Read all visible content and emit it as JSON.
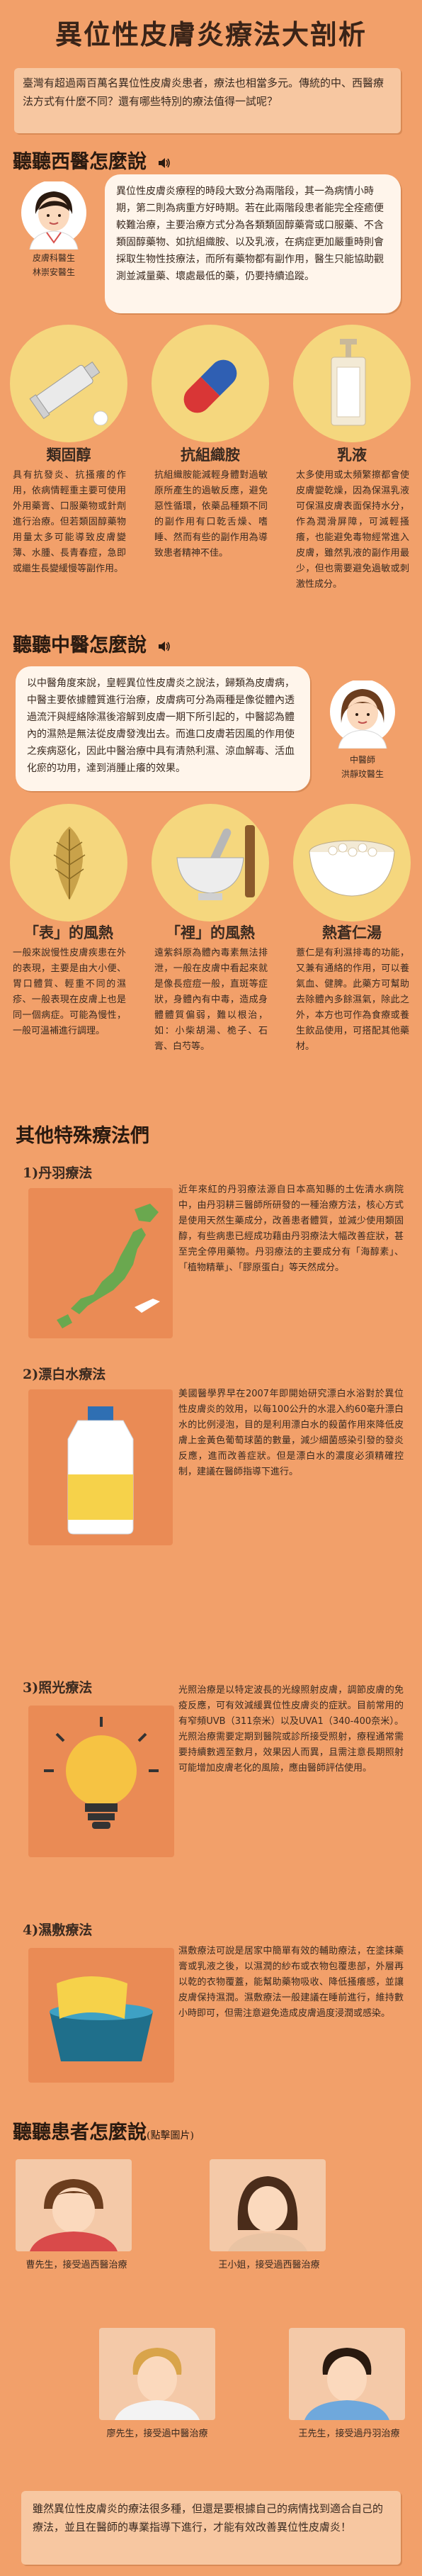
{
  "title": "異位性皮膚炎療法大剖析",
  "intro": "臺灣有超過兩百萬名異位性皮膚炎患者，療法也相當多元。傳統的中、西醫療法方式有什麼不同？還有哪些特別的療法值得一試呢？",
  "western": {
    "heading": "聽聽西醫怎麼說",
    "doctor_caption": [
      "皮膚科醫生",
      "林崇安醫生"
    ],
    "speech": "異位性皮膚炎療程的時段大致分為兩階段，其一為病情小時期，第二則為病重方好時期。若在此兩階段患者能完全痊癒便較難治療，主要治療方式分為各類類固醇藥膏或口服藥、不含類固醇藥物、如抗組織胺、以及乳液，在病症更加嚴重時則會採取生物性技療法，而所有藥物都有副作用，醫生只能協助觀測並減量藥、壞處最低的藥，仍要持續追蹤。",
    "cards": [
      {
        "label": "類固醇",
        "body": "具有抗發炎、抗搔癢的作用，依病情輕重主要可使用外用藥膏、口服藥物或針劑進行治療。但若類固醇藥物用量太多可能導致皮膚變薄、水腫、長青春痘，急即或繼生長變緩慢等副作用。"
      },
      {
        "label": "抗組織胺",
        "body": "抗組織胺能減輕身體對過敏原所產生的過敏反應，避免惡性循環，依藥品種類不同的副作用有口乾舌燥、嗜睡、然而有些的副作用為導致患者精神不佳。"
      },
      {
        "label": "乳液",
        "body": "太多使用或太頻繁擦都會使皮膚變乾燥，因為保濕乳液可保濕皮膚表面保持水分，作為潤滑屏障，可減輕搔癢，也能避免毒物經常進入皮膚，雖然乳液的副作用最少，但也需要避免過敏或刺激性成分。"
      }
    ]
  },
  "chinese": {
    "heading": "聽聽中醫怎麼說",
    "speech": "以中醫角度來說，皇輕異位性皮膚炎之說法，歸類為皮膚病，中醫主要依據體質進行治療，皮膚病可分為兩種是像從體內透過流汗與經絡除濕後溶解到皮膚一期下所引起的，中醫認為體內的濕熱是無法從皮膚發洩出去。而進口皮膚若因風的作用使之疾病惡化，因此中醫治療中具有清熱利濕、涼血解毒、活血化瘀的功用，達到消腫止癢的效果。",
    "doctor_caption": [
      "中醫師",
      "洪靜玟醫生"
    ],
    "cards": [
      {
        "label": "「表」的風熱",
        "body": "一般來說慢性皮膚疾患在外的表現，主要是由大小便、胃口體質、輕重不同的濕疹、一般表現在皮膚上也是同一個病症。可能為慢性，一般可溫補進行調理。"
      },
      {
        "label": "「裡」的風熱",
        "body": "遠紫斜原為體內毒素無法排泄，一般在皮膚中看起來就是像長痘痘一般，直斑等症狀，身體內有中毒，造成身體體質偏弱，難以根治，如：小柴胡湯、桅子、石膏、白芍等。"
      },
      {
        "label": "熱蒼仁湯",
        "body": "薏仁是有利濕排毒的功能，又兼有通絡的作用，可以養氣血、健脾。此藥方可幫助去除體內多餘濕氣，除此之外，本方也可作為食療或養生飲品使用，可搭配其他藥材。"
      }
    ]
  },
  "special": {
    "heading": "其他特殊療法們",
    "items": [
      {
        "label": "1)丹羽療法",
        "body": "近年來紅的丹羽療法源自日本高知縣的土佐清水病院中，由丹羽耕三醫師所研發的一種治療方法，核心方式是使用天然生藥成分，改善患者體質，並減少使用類固醇，有些病患已經成功藉由丹羽療法大幅改善症狀，甚至完全停用藥物。丹羽療法的主要成分有「海醇素」、「植物精華」、「膠原蛋白」等天然成分。"
      },
      {
        "label": "2)漂白水療法",
        "body": "美國醫學界早在2007年即開始研究漂白水浴對於異位性皮膚炎的效用，以每100公升的水混入約60毫升漂白水的比例浸泡，目的是利用漂白水的殺菌作用來降低皮膚上金黃色葡萄球菌的數量，減少細菌感染引發的發炎反應，進而改善症狀。但是漂白水的濃度必須精確控制，建議在醫師指導下進行。"
      },
      {
        "label": "3)照光療法",
        "body": "光照治療是以特定波長的光線照射皮膚，調節皮膚的免疫反應，可有效減緩異位性皮膚炎的症狀。目前常用的有窄頻UVB（311奈米）以及UVA1（340-400奈米）。光照治療需要定期到醫院或診所接受照射，療程通常需要持續數週至數月，效果因人而異，且需注意長期照射可能增加皮膚老化的風險，應由醫師評估使用。"
      },
      {
        "label": "4)濕敷療法",
        "body": "濕敷療法可說是居家中簡單有效的輔助療法，在塗抹藥膏或乳液之後，以濕潤的紗布或衣物包覆患部，外層再以乾的衣物覆蓋，能幫助藥物吸收、降低搔癢感，並讓皮膚保持濕潤。濕敷療法一般建議在睡前進行，維持數小時即可，但需注意避免造成皮膚過度浸潤或感染。"
      }
    ]
  },
  "patients": {
    "heading": "聽聽患者怎麼說",
    "heading_note": "(點擊圖片)",
    "items": [
      {
        "caption": "曹先生，接受過西醫治療"
      },
      {
        "caption": "王小姐，接受過西醫治療"
      },
      {
        "caption": "廖先生，接受過中醫治療"
      },
      {
        "caption": "王先生，接受過丹羽治療"
      }
    ]
  },
  "outro": "雖然異位性皮膚炎的療法很多種，但還是要根據自己的病情找到適合自己的療法，並且在醫師的專業指導下進行，才能有效改善異位性皮膚炎！",
  "colors": {
    "background": "#f2a06a",
    "card": "#f5d77e",
    "panel": "#ea8b55"
  }
}
